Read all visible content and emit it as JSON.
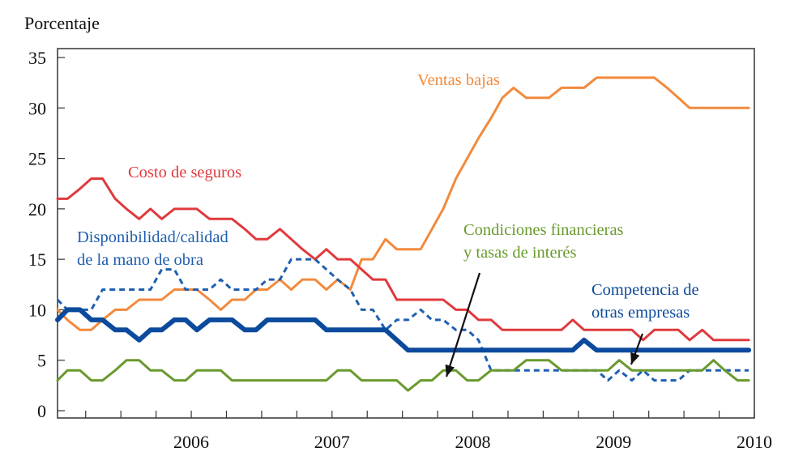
{
  "chart_data": {
    "type": "line",
    "ylabel": "Porcentaje",
    "ylim": [
      0,
      35
    ],
    "yticks": [
      0,
      5,
      10,
      15,
      20,
      25,
      30,
      35
    ],
    "xlim": [
      2005.55,
      2010.5
    ],
    "year_labels": [
      "2006",
      "2007",
      "2008",
      "2009",
      "2010"
    ],
    "grid": false,
    "series": [
      {
        "name": "Ventas bajas",
        "color": "#f28a3c",
        "style": "solid",
        "width": 3,
        "x": [
          2005.55,
          2005.62,
          2005.71,
          2005.79,
          2005.87,
          2005.96,
          2006.04,
          2006.13,
          2006.21,
          2006.29,
          2006.38,
          2006.46,
          2006.54,
          2006.63,
          2006.71,
          2006.79,
          2006.88,
          2006.96,
          2007.04,
          2007.13,
          2007.21,
          2007.29,
          2007.38,
          2007.46,
          2007.54,
          2007.63,
          2007.71,
          2007.79,
          2007.88,
          2007.96,
          2008.04,
          2008.13,
          2008.21,
          2008.29,
          2008.38,
          2008.46,
          2008.54,
          2008.63,
          2008.71,
          2008.79,
          2008.88,
          2008.96,
          2009.04,
          2009.13,
          2009.21,
          2009.29,
          2009.38,
          2009.46,
          2009.54,
          2009.63,
          2009.71,
          2009.79,
          2009.88,
          2009.96,
          2010.04,
          2010.13,
          2010.21,
          2010.29,
          2010.38,
          2010.46
        ],
        "y": [
          10,
          9,
          8,
          8,
          9,
          10,
          10,
          11,
          11,
          11,
          12,
          12,
          12,
          11,
          10,
          11,
          11,
          12,
          12,
          13,
          12,
          13,
          13,
          12,
          13,
          12,
          15,
          15,
          17,
          16,
          16,
          16,
          18,
          20,
          23,
          25,
          27,
          29,
          31,
          32,
          31,
          31,
          31,
          32,
          32,
          32,
          33,
          33,
          33,
          33,
          33,
          33,
          32,
          31,
          30,
          30,
          30,
          30,
          30,
          30
        ]
      },
      {
        "name": "Costo de seguros",
        "color": "#e03a3e",
        "style": "solid",
        "width": 3,
        "x": [
          2005.55,
          2005.62,
          2005.71,
          2005.79,
          2005.87,
          2005.96,
          2006.04,
          2006.13,
          2006.21,
          2006.29,
          2006.38,
          2006.46,
          2006.54,
          2006.63,
          2006.71,
          2006.79,
          2006.88,
          2006.96,
          2007.04,
          2007.13,
          2007.21,
          2007.29,
          2007.38,
          2007.46,
          2007.54,
          2007.63,
          2007.71,
          2007.79,
          2007.88,
          2007.96,
          2008.04,
          2008.13,
          2008.21,
          2008.29,
          2008.38,
          2008.46,
          2008.54,
          2008.63,
          2008.71,
          2008.79,
          2008.88,
          2008.96,
          2009.04,
          2009.13,
          2009.21,
          2009.29,
          2009.38,
          2009.46,
          2009.54,
          2009.63,
          2009.71,
          2009.79,
          2009.88,
          2009.96,
          2010.04,
          2010.13,
          2010.21,
          2010.29,
          2010.38,
          2010.46
        ],
        "y": [
          21,
          21,
          22,
          23,
          23,
          21,
          20,
          19,
          20,
          19,
          20,
          20,
          20,
          19,
          19,
          19,
          18,
          17,
          17,
          18,
          17,
          16,
          15,
          16,
          15,
          15,
          14,
          13,
          13,
          11,
          11,
          11,
          11,
          11,
          10,
          10,
          9,
          9,
          8,
          8,
          8,
          8,
          8,
          8,
          9,
          8,
          8,
          8,
          8,
          8,
          7,
          8,
          8,
          8,
          7,
          8,
          7,
          7,
          7,
          7
        ]
      },
      {
        "name": "Disponibilidad/calidad de la mano de obra",
        "color": "#1f5fb0",
        "style": "dashed",
        "width": 3,
        "x": [
          2005.55,
          2005.62,
          2005.71,
          2005.79,
          2005.87,
          2005.96,
          2006.04,
          2006.13,
          2006.21,
          2006.29,
          2006.38,
          2006.46,
          2006.54,
          2006.63,
          2006.71,
          2006.79,
          2006.88,
          2006.96,
          2007.04,
          2007.13,
          2007.21,
          2007.29,
          2007.38,
          2007.46,
          2007.54,
          2007.63,
          2007.71,
          2007.79,
          2007.88,
          2007.96,
          2008.04,
          2008.13,
          2008.21,
          2008.29,
          2008.38,
          2008.46,
          2008.54,
          2008.63,
          2008.71,
          2008.79,
          2008.88,
          2008.96,
          2009.04,
          2009.13,
          2009.21,
          2009.29,
          2009.38,
          2009.46,
          2009.54,
          2009.63,
          2009.71,
          2009.79,
          2009.88,
          2009.96,
          2010.04,
          2010.13,
          2010.21,
          2010.29,
          2010.38,
          2010.46
        ],
        "y": [
          11,
          10,
          10,
          10,
          12,
          12,
          12,
          12,
          12,
          14,
          14,
          12,
          12,
          12,
          13,
          12,
          12,
          12,
          13,
          13,
          15,
          15,
          15,
          14,
          13,
          12,
          10,
          10,
          8,
          9,
          9,
          10,
          9,
          9,
          8,
          8,
          7,
          4,
          4,
          4,
          4,
          4,
          4,
          4,
          4,
          4,
          4,
          3,
          4,
          3,
          4,
          3,
          3,
          3,
          4,
          4,
          4,
          4,
          4,
          4
        ]
      },
      {
        "name": "Competencia de otras empresas",
        "color": "#0b4a9c",
        "style": "solid",
        "width": 6,
        "x": [
          2005.55,
          2005.62,
          2005.71,
          2005.79,
          2005.87,
          2005.96,
          2006.04,
          2006.13,
          2006.21,
          2006.29,
          2006.38,
          2006.46,
          2006.54,
          2006.63,
          2006.71,
          2006.79,
          2006.88,
          2006.96,
          2007.04,
          2007.13,
          2007.21,
          2007.29,
          2007.38,
          2007.46,
          2007.54,
          2007.63,
          2007.71,
          2007.79,
          2007.88,
          2007.96,
          2008.04,
          2008.13,
          2008.21,
          2008.29,
          2008.38,
          2008.46,
          2008.54,
          2008.63,
          2008.71,
          2008.79,
          2008.88,
          2008.96,
          2009.04,
          2009.13,
          2009.21,
          2009.29,
          2009.38,
          2009.46,
          2009.54,
          2009.63,
          2009.71,
          2009.79,
          2009.88,
          2009.96,
          2010.04,
          2010.13,
          2010.21,
          2010.29,
          2010.38,
          2010.46
        ],
        "y": [
          9,
          10,
          10,
          9,
          9,
          8,
          8,
          7,
          8,
          8,
          9,
          9,
          8,
          9,
          9,
          9,
          8,
          8,
          9,
          9,
          9,
          9,
          9,
          8,
          8,
          8,
          8,
          8,
          8,
          7,
          6,
          6,
          6,
          6,
          6,
          6,
          6,
          6,
          6,
          6,
          6,
          6,
          6,
          6,
          6,
          7,
          6,
          6,
          6,
          6,
          6,
          6,
          6,
          6,
          6,
          6,
          6,
          6,
          6,
          6
        ]
      },
      {
        "name": "Condiciones financieras y tasas de interés",
        "color": "#6a9a2e",
        "style": "solid",
        "width": 3,
        "x": [
          2005.55,
          2005.62,
          2005.71,
          2005.79,
          2005.87,
          2005.96,
          2006.04,
          2006.13,
          2006.21,
          2006.29,
          2006.38,
          2006.46,
          2006.54,
          2006.63,
          2006.71,
          2006.79,
          2006.88,
          2006.96,
          2007.04,
          2007.13,
          2007.21,
          2007.29,
          2007.38,
          2007.46,
          2007.54,
          2007.63,
          2007.71,
          2007.79,
          2007.88,
          2007.96,
          2008.04,
          2008.13,
          2008.21,
          2008.29,
          2008.38,
          2008.46,
          2008.54,
          2008.63,
          2008.71,
          2008.79,
          2008.88,
          2008.96,
          2009.04,
          2009.13,
          2009.21,
          2009.29,
          2009.38,
          2009.46,
          2009.54,
          2009.63,
          2009.71,
          2009.79,
          2009.88,
          2009.96,
          2010.04,
          2010.13,
          2010.21,
          2010.29,
          2010.38,
          2010.46
        ],
        "y": [
          3,
          4,
          4,
          3,
          3,
          4,
          5,
          5,
          4,
          4,
          3,
          3,
          4,
          4,
          4,
          3,
          3,
          3,
          3,
          3,
          3,
          3,
          3,
          3,
          4,
          4,
          3,
          3,
          3,
          3,
          2,
          3,
          3,
          4,
          4,
          3,
          3,
          4,
          4,
          4,
          5,
          5,
          5,
          4,
          4,
          4,
          4,
          4,
          5,
          4,
          4,
          4,
          4,
          4,
          4,
          4,
          5,
          4,
          3,
          3
        ]
      }
    ],
    "annotations": [
      {
        "id": "ventas",
        "lines": [
          "Ventas bajas"
        ],
        "color": "#f28a3c"
      },
      {
        "id": "costo",
        "lines": [
          "Costo de seguros"
        ],
        "color": "#e03a3e"
      },
      {
        "id": "disp",
        "lines": [
          "Disponibilidad/calidad",
          "de la mano de obra"
        ],
        "color": "#1f5fb0"
      },
      {
        "id": "cond",
        "lines": [
          "Condiciones financieras",
          "y tasas de interés"
        ],
        "color": "#6a9a2e"
      },
      {
        "id": "comp",
        "lines": [
          "Competencia de",
          "otras empresas"
        ],
        "color": "#0b4a9c"
      }
    ]
  }
}
